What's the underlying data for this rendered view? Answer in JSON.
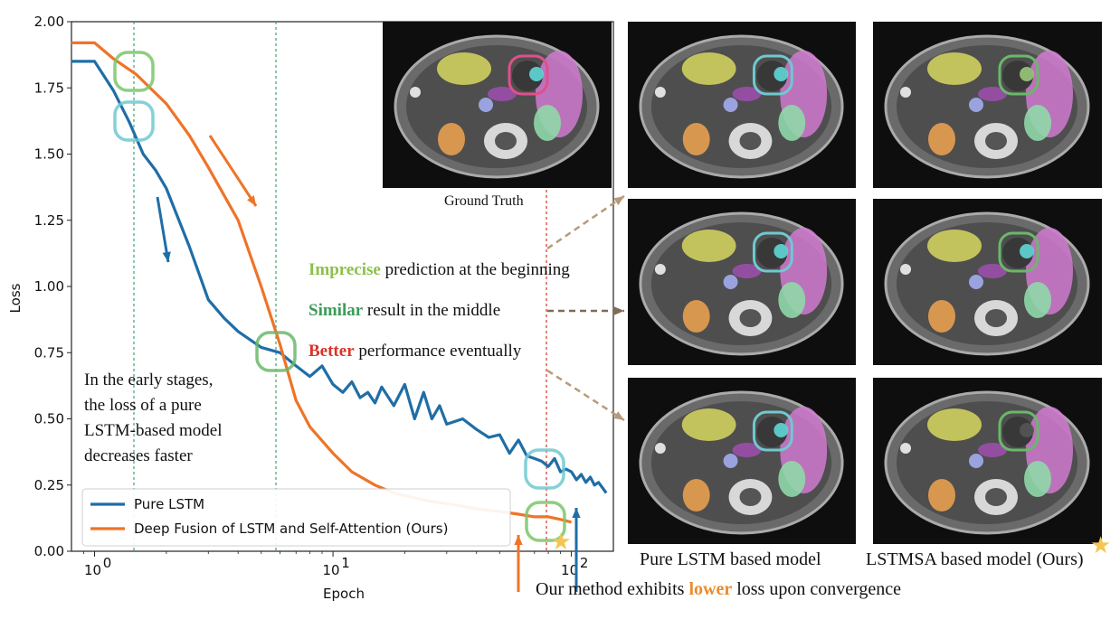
{
  "chart_data": {
    "type": "line",
    "xscale": "log",
    "xlabel": "Epoch",
    "ylabel": "Loss",
    "xlim": [
      0.8,
      150
    ],
    "ylim": [
      0,
      2.0
    ],
    "yticks": [
      "0.00",
      "0.25",
      "0.50",
      "0.75",
      "1.00",
      "1.25",
      "1.50",
      "1.75",
      "2.00"
    ],
    "xticks": [
      {
        "base": "10",
        "exp": "0"
      },
      {
        "base": "10",
        "exp": "1"
      },
      {
        "base": "10",
        "exp": "2"
      }
    ],
    "legend_position": "lower-left",
    "series": [
      {
        "name": "Pure LSTM",
        "color": "#1f6ea6",
        "x": [
          0.8,
          1.0,
          1.2,
          1.4,
          1.6,
          1.8,
          2.0,
          2.5,
          3.0,
          3.5,
          4.0,
          5.0,
          6.0,
          7.0,
          8.0,
          9.0,
          10,
          11,
          12,
          13,
          14,
          15,
          16,
          18,
          20,
          22,
          24,
          26,
          28,
          30,
          35,
          40,
          45,
          50,
          55,
          60,
          65,
          70,
          75,
          80,
          85,
          90,
          95,
          100,
          105,
          110,
          115,
          120,
          125,
          130,
          135,
          140
        ],
        "y": [
          1.85,
          1.85,
          1.74,
          1.62,
          1.5,
          1.44,
          1.37,
          1.15,
          0.95,
          0.88,
          0.83,
          0.77,
          0.75,
          0.7,
          0.66,
          0.7,
          0.63,
          0.6,
          0.64,
          0.58,
          0.6,
          0.56,
          0.62,
          0.55,
          0.63,
          0.5,
          0.6,
          0.5,
          0.55,
          0.48,
          0.5,
          0.46,
          0.43,
          0.44,
          0.37,
          0.42,
          0.36,
          0.35,
          0.34,
          0.32,
          0.35,
          0.3,
          0.31,
          0.3,
          0.27,
          0.29,
          0.26,
          0.28,
          0.25,
          0.26,
          0.24,
          0.22
        ]
      },
      {
        "name": "Deep Fusion of LSTM and Self-Attention (Ours)",
        "color": "#ee7428",
        "x": [
          0.8,
          1.0,
          1.2,
          1.5,
          2.0,
          2.5,
          3.0,
          4.0,
          5.0,
          6.0,
          7.0,
          8.0,
          10,
          12,
          15,
          18,
          20,
          25,
          30,
          35,
          40,
          50,
          60,
          70,
          80,
          90,
          100
        ],
        "y": [
          1.92,
          1.92,
          1.86,
          1.8,
          1.69,
          1.57,
          1.45,
          1.25,
          1.0,
          0.78,
          0.57,
          0.47,
          0.37,
          0.3,
          0.25,
          0.22,
          0.21,
          0.19,
          0.18,
          0.17,
          0.16,
          0.15,
          0.14,
          0.13,
          0.13,
          0.12,
          0.11
        ]
      }
    ]
  },
  "annotations": {
    "early_text": [
      "In the early stages,",
      "the loss of  a pure",
      "LSTM-based model",
      "decreases faster"
    ],
    "ground_truth_caption": "Ground Truth",
    "imprecise_word": "Imprecise",
    "imprecise_rest": " prediction at the beginning",
    "similar_word": "Similar",
    "similar_rest": " result in the middle",
    "better_word": "Better",
    "better_rest": " performance eventually",
    "bottom_pre": "Our method exhibits ",
    "bottom_word": "lower",
    "bottom_post": " loss upon convergence",
    "pure_caption": "Pure LSTM based model",
    "ours_caption": "LSTMSA based model (Ours)",
    "colors": {
      "imprecise": "#8cc04b",
      "similar": "#3d9b5a",
      "better": "#d9332a",
      "lower": "#ee8a2b",
      "arrow_brown": "#b89a7a"
    }
  }
}
